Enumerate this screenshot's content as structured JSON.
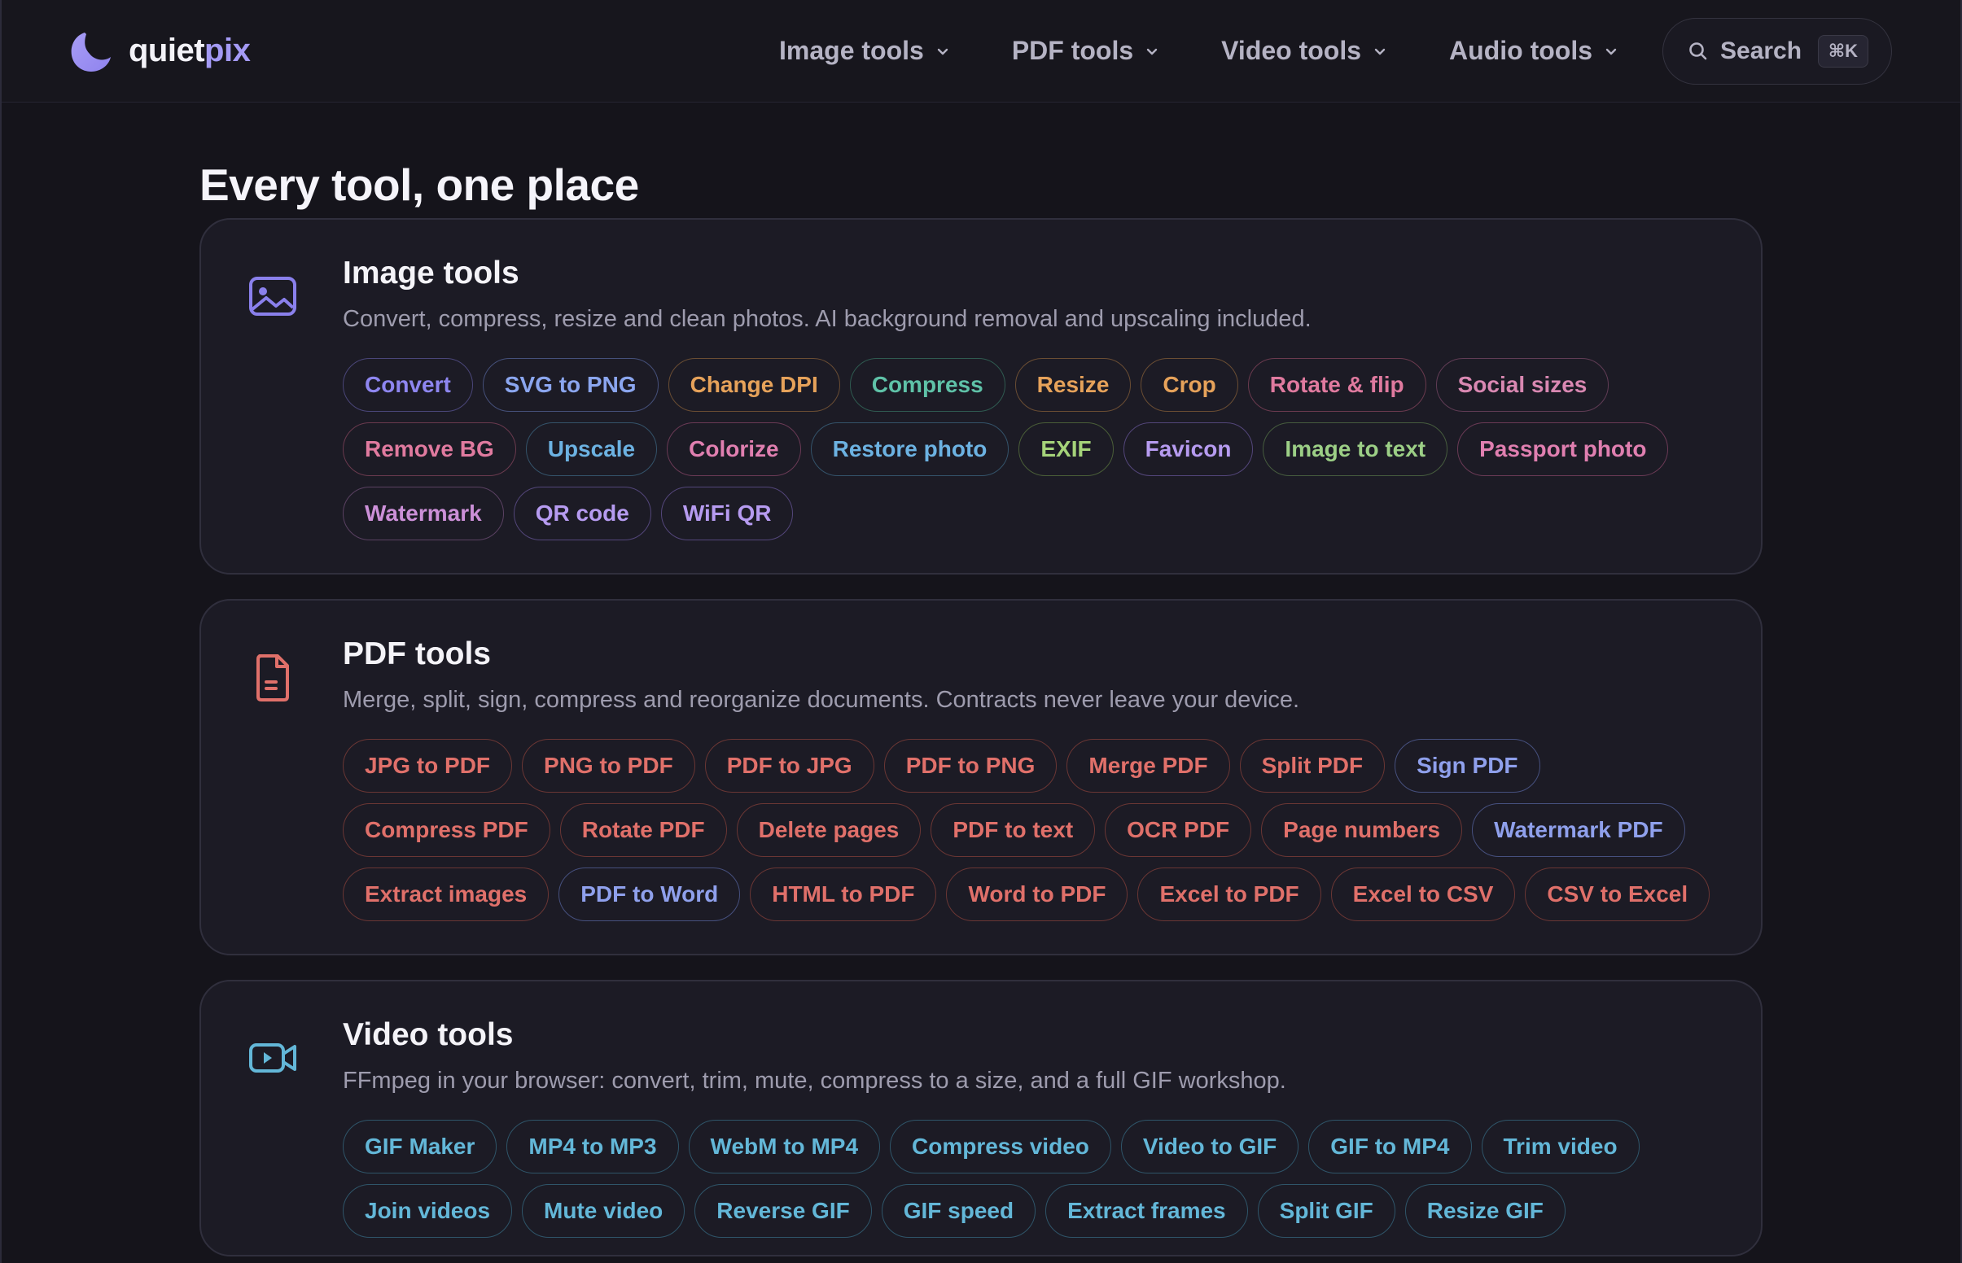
{
  "brand": {
    "name_a": "quiet",
    "name_b": "pix"
  },
  "nav": [
    {
      "label": "Image tools"
    },
    {
      "label": "PDF tools"
    },
    {
      "label": "Video tools"
    },
    {
      "label": "Audio tools"
    }
  ],
  "search": {
    "label": "Search",
    "shortcut": "⌘K"
  },
  "page_title": "Every tool, one place",
  "sections": [
    {
      "title": "Image tools",
      "icon": "image-icon",
      "description": "Convert, compress, resize and clean photos. AI background removal and upscaling included.",
      "chips": [
        {
          "label": "Convert",
          "color": "#8e86f0"
        },
        {
          "label": "SVG to PNG",
          "color": "#8ba6ef"
        },
        {
          "label": "Change DPI",
          "color": "#e6a25a"
        },
        {
          "label": "Compress",
          "color": "#5fc2a8"
        },
        {
          "label": "Resize",
          "color": "#e6a25a"
        },
        {
          "label": "Crop",
          "color": "#e6a25a"
        },
        {
          "label": "Rotate & flip",
          "color": "#e07a9f"
        },
        {
          "label": "Social sizes",
          "color": "#d988b2"
        },
        {
          "label": "Remove BG",
          "color": "#e07a9f"
        },
        {
          "label": "Upscale",
          "color": "#6cb2e2"
        },
        {
          "label": "Colorize",
          "color": "#e07fb0"
        },
        {
          "label": "Restore photo",
          "color": "#6cb2e2"
        },
        {
          "label": "EXIF",
          "color": "#a5d37a"
        },
        {
          "label": "Favicon",
          "color": "#b69bf0"
        },
        {
          "label": "Image to text",
          "color": "#9ccf86"
        },
        {
          "label": "Passport photo",
          "color": "#e07fb0"
        },
        {
          "label": "Watermark",
          "color": "#cc90d8"
        },
        {
          "label": "QR code",
          "color": "#b69bf0"
        },
        {
          "label": "WiFi QR",
          "color": "#b69bf0"
        }
      ]
    },
    {
      "title": "PDF tools",
      "icon": "document-icon",
      "description": "Merge, split, sign, compress and reorganize documents. Contracts never leave your device.",
      "chips": [
        {
          "label": "JPG to PDF",
          "color": "#e0706a"
        },
        {
          "label": "PNG to PDF",
          "color": "#e0706a"
        },
        {
          "label": "PDF to JPG",
          "color": "#e0706a"
        },
        {
          "label": "PDF to PNG",
          "color": "#e0706a"
        },
        {
          "label": "Merge PDF",
          "color": "#e0706a"
        },
        {
          "label": "Split PDF",
          "color": "#e0706a"
        },
        {
          "label": "Sign PDF",
          "color": "#8fa0ec"
        },
        {
          "label": "Compress PDF",
          "color": "#e0706a"
        },
        {
          "label": "Rotate PDF",
          "color": "#e0706a"
        },
        {
          "label": "Delete pages",
          "color": "#e0706a"
        },
        {
          "label": "PDF to text",
          "color": "#e0706a"
        },
        {
          "label": "OCR PDF",
          "color": "#e0706a"
        },
        {
          "label": "Page numbers",
          "color": "#e0706a"
        },
        {
          "label": "Watermark PDF",
          "color": "#8fa0ec"
        },
        {
          "label": "Extract images",
          "color": "#e0706a"
        },
        {
          "label": "PDF to Word",
          "color": "#8fa0ec"
        },
        {
          "label": "HTML to PDF",
          "color": "#e0706a"
        },
        {
          "label": "Word to PDF",
          "color": "#e0706a"
        },
        {
          "label": "Excel to PDF",
          "color": "#e0706a"
        },
        {
          "label": "Excel to CSV",
          "color": "#e0706a"
        },
        {
          "label": "CSV to Excel",
          "color": "#e0706a"
        }
      ]
    },
    {
      "title": "Video tools",
      "icon": "video-camera-icon",
      "description": "FFmpeg in your browser: convert, trim, mute, compress to a size, and a full GIF workshop.",
      "chips": [
        {
          "label": "GIF Maker",
          "color": "#63b7d8"
        },
        {
          "label": "MP4 to MP3",
          "color": "#63b7d8"
        },
        {
          "label": "WebM to MP4",
          "color": "#63b7d8"
        },
        {
          "label": "Compress video",
          "color": "#63b7d8"
        },
        {
          "label": "Video to GIF",
          "color": "#63b7d8"
        },
        {
          "label": "GIF to MP4",
          "color": "#63b7d8"
        },
        {
          "label": "Trim video",
          "color": "#63b7d8"
        },
        {
          "label": "Join videos",
          "color": "#63b7d8"
        },
        {
          "label": "Mute video",
          "color": "#63b7d8"
        },
        {
          "label": "Reverse GIF",
          "color": "#63b7d8"
        },
        {
          "label": "GIF speed",
          "color": "#63b7d8"
        },
        {
          "label": "Extract frames",
          "color": "#63b7d8"
        },
        {
          "label": "Split GIF",
          "color": "#63b7d8"
        },
        {
          "label": "Resize GIF",
          "color": "#63b7d8"
        }
      ]
    }
  ]
}
